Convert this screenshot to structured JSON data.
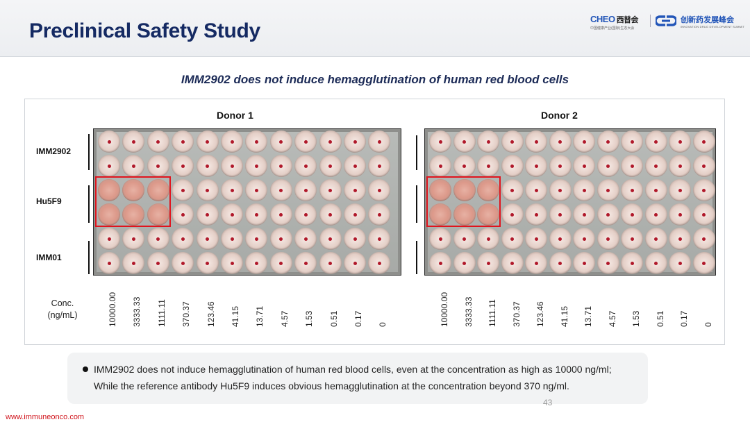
{
  "slide": {
    "title": "Preclinical Safety Study",
    "subtitle": "IMM2902  does not induce hemagglutination of human red blood cells",
    "page_number": "43",
    "footer_link": "www.immuneonco.com"
  },
  "logos": {
    "cheo_word": "CHEO",
    "cheo_cn": "西普会",
    "cheo_sub": "中国健康产业(国际)生态大会",
    "summit_cn": "创新药发展峰会",
    "summit_en": "INNOVATION DRUG DEVELOPMENT SUMMIT",
    "brand_color": "#2356b8"
  },
  "figure": {
    "row_labels": [
      "IMM2902",
      "Hu5F9",
      "IMM01"
    ],
    "conc_label_line1": "Conc.",
    "conc_label_line2": "(ng/mL)",
    "concentrations": [
      "10000.00",
      "3333.33",
      "1111.11",
      "370.37",
      "123.46",
      "41.15",
      "13.71",
      "4.57",
      "1.53",
      "0.51",
      "0.17",
      "0"
    ],
    "donors": [
      {
        "title": "Donor 1",
        "agglutinated_wells": {
          "rows": [
            2,
            3
          ],
          "columns": [
            0,
            1,
            2
          ]
        }
      },
      {
        "title": "Donor 2",
        "agglutinated_wells": {
          "rows": [
            2,
            3
          ],
          "columns": [
            0,
            1,
            2
          ]
        }
      }
    ],
    "highlight_color": "#e1141d"
  },
  "note": {
    "line1": "IMM2902 does not induce hemagglutination of human red blood cells, even at the concentration as high as 10000 ng/ml;",
    "line2": "While the reference antibody Hu5F9 induces obvious hemagglutination at the concentration beyond 370 ng/ml."
  }
}
